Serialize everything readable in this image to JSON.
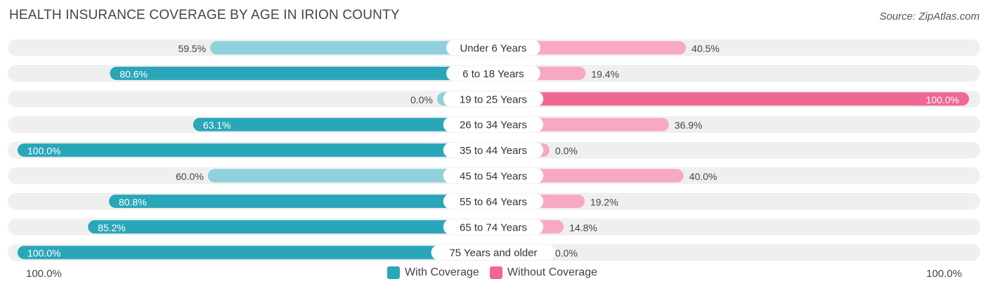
{
  "title": "HEALTH INSURANCE COVERAGE BY AGE IN IRION COUNTY",
  "source": "Source: ZipAtlas.com",
  "colors": {
    "with_strong": "#2aa6b9",
    "with_light": "#8ed1db",
    "without_strong": "#f06792",
    "without_light": "#f8a8c2",
    "track": "#efefef"
  },
  "chart_data": {
    "type": "bar",
    "orientation": "horizontal-diverging",
    "categories": [
      "Under 6 Years",
      "6 to 18 Years",
      "19 to 25 Years",
      "26 to 34 Years",
      "35 to 44 Years",
      "45 to 54 Years",
      "55 to 64 Years",
      "65 to 74 Years",
      "75 Years and older"
    ],
    "series": [
      {
        "name": "With Coverage",
        "values": [
          59.5,
          80.6,
          0.0,
          63.1,
          100.0,
          60.0,
          80.8,
          85.2,
          100.0
        ],
        "labels": [
          "59.5%",
          "80.6%",
          "0.0%",
          "63.1%",
          "100.0%",
          "60.0%",
          "80.8%",
          "85.2%",
          "100.0%"
        ]
      },
      {
        "name": "Without Coverage",
        "values": [
          40.5,
          19.4,
          100.0,
          36.9,
          0.0,
          40.0,
          19.2,
          14.8,
          0.0
        ],
        "labels": [
          "40.5%",
          "19.4%",
          "100.0%",
          "36.9%",
          "0.0%",
          "40.0%",
          "19.2%",
          "14.8%",
          "0.0%"
        ]
      }
    ],
    "axis_left_label": "100.0%",
    "axis_right_label": "100.0%",
    "xlim": [
      0,
      100
    ],
    "legend_position": "bottom-center"
  }
}
